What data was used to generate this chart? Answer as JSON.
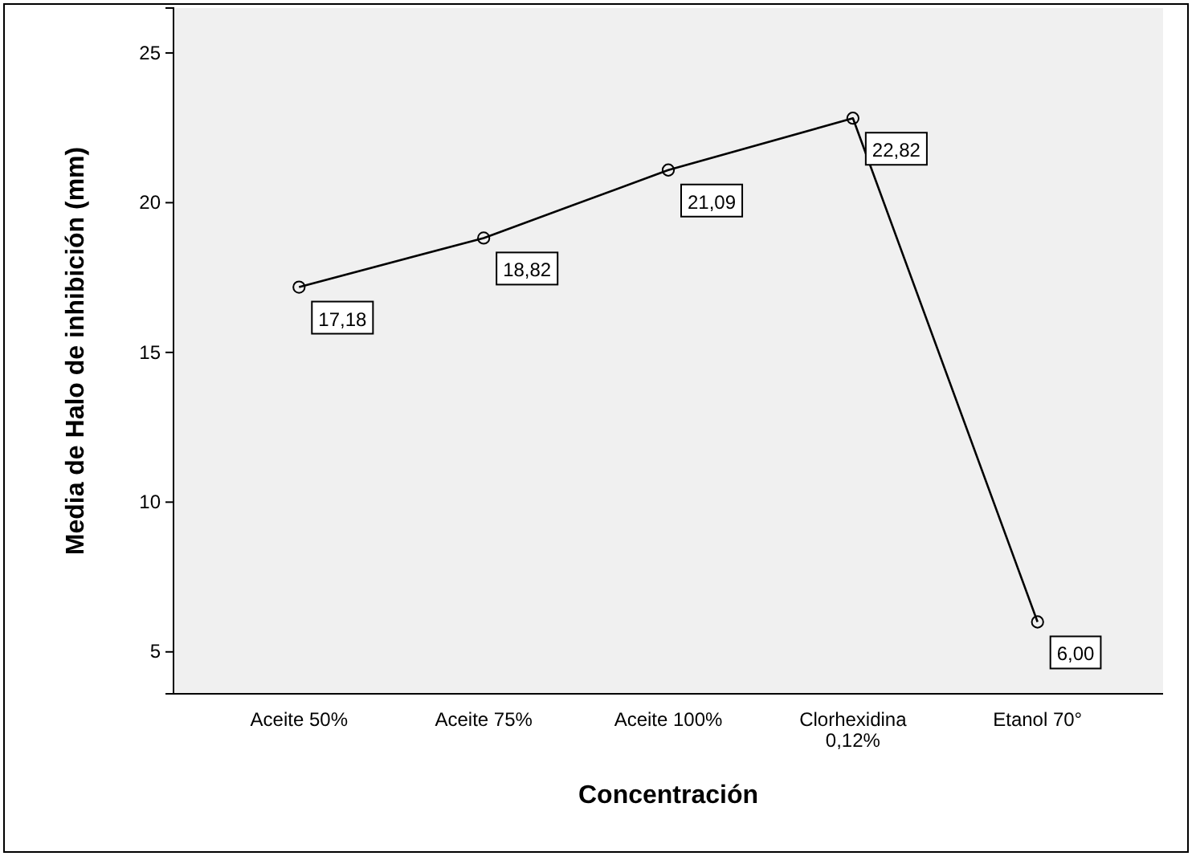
{
  "chart_data": {
    "type": "line",
    "xlabel": "Concentración",
    "ylabel": "Media de Halo de inhibición (mm)",
    "categories": [
      "Aceite 50%",
      "Aceite 75%",
      "Aceite 100%",
      "Clorhexidina 0,12%",
      "Etanol 70°"
    ],
    "series": [
      {
        "color": "#000000",
        "values": [
          17.18,
          18.82,
          21.09,
          22.82,
          6.0
        ],
        "value_labels": [
          "17,18",
          "18,82",
          "21,09",
          "22,82",
          "6,00"
        ]
      }
    ],
    "ylim": [
      3.6,
      26.5
    ],
    "yticks": [
      5,
      10,
      15,
      20,
      25
    ],
    "grid": false,
    "marker": "circle",
    "line_style": "solid"
  }
}
